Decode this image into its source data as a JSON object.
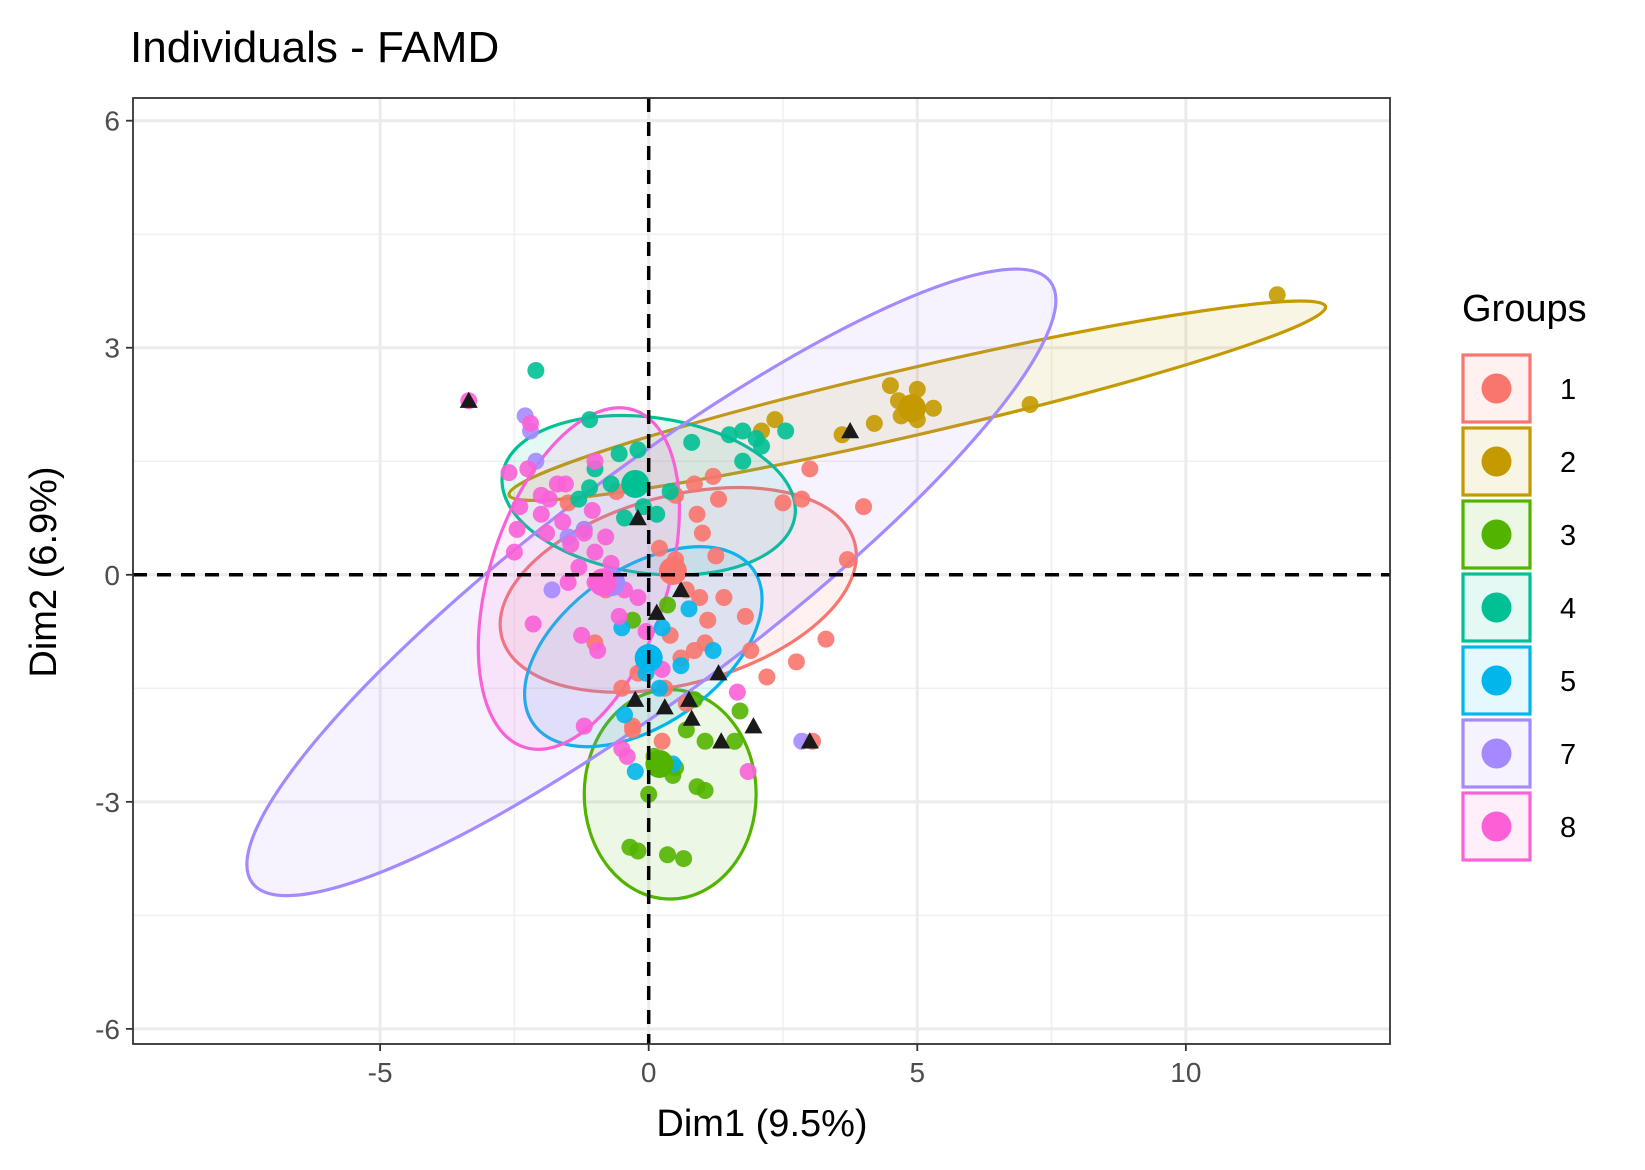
{
  "chart_data": {
    "type": "scatter",
    "title": "Individuals - FAMD",
    "xlabel": "Dim1 (9.5%)",
    "ylabel": "Dim2 (6.9%)",
    "xlim": [
      -9.6,
      13.8
    ],
    "ylim": [
      -6.2,
      6.3
    ],
    "xticks": [
      -5,
      0,
      5,
      10
    ],
    "yticks": [
      -6,
      -3,
      0,
      3,
      6
    ],
    "xtick_labels": [
      "-5",
      "0",
      "5",
      "10"
    ],
    "ytick_labels": [
      "-6",
      "-3",
      "0",
      "3",
      "6"
    ],
    "grid": true,
    "legend_position": "right",
    "legend_title": "Groups",
    "reference_lines": {
      "x": 0,
      "y": 0,
      "style": "dashed"
    },
    "series": [
      {
        "name": "1",
        "color": "#F8766D",
        "centroid": [
          0.45,
          0.05
        ],
        "ellipse": {
          "cx": 0.55,
          "cy": -0.2,
          "rx": 3.4,
          "ry": 1.75,
          "angle": 15
        },
        "points": [
          [
            3.0,
            1.4
          ],
          [
            4.0,
            0.9
          ],
          [
            2.5,
            0.95
          ],
          [
            2.85,
            1.0
          ],
          [
            3.7,
            0.2
          ],
          [
            3.3,
            -0.85
          ],
          [
            2.75,
            -1.15
          ],
          [
            2.2,
            -1.35
          ],
          [
            1.9,
            -1.0
          ],
          [
            3.05,
            -2.2
          ],
          [
            1.2,
            1.3
          ],
          [
            1.3,
            1.0
          ],
          [
            0.9,
            0.8
          ],
          [
            1.0,
            0.55
          ],
          [
            1.25,
            0.25
          ],
          [
            0.5,
            0.2
          ],
          [
            0.2,
            0.35
          ],
          [
            0.7,
            -0.2
          ],
          [
            1.1,
            -0.6
          ],
          [
            1.05,
            -0.9
          ],
          [
            0.85,
            -1.0
          ],
          [
            0.4,
            -0.8
          ],
          [
            0.6,
            -1.1
          ],
          [
            0.3,
            -1.5
          ],
          [
            -0.2,
            -1.3
          ],
          [
            -0.5,
            -1.5
          ],
          [
            -0.3,
            -2.0
          ],
          [
            -0.3,
            -2.05
          ],
          [
            0.25,
            -2.2
          ],
          [
            0.7,
            -1.7
          ],
          [
            1.4,
            -0.3
          ],
          [
            0.95,
            -0.3
          ],
          [
            1.8,
            -0.55
          ],
          [
            -0.8,
            -0.2
          ],
          [
            -1.2,
            0.6
          ],
          [
            -1.5,
            0.95
          ],
          [
            -0.6,
            1.1
          ],
          [
            -0.2,
            1.2
          ],
          [
            0.5,
            1.05
          ],
          [
            0.85,
            1.2
          ],
          [
            -1.0,
            -0.9
          ]
        ]
      },
      {
        "name": "2",
        "color": "#C49A00",
        "centroid": [
          4.9,
          2.2
        ],
        "ellipse": {
          "cx": 5.0,
          "cy": 2.3,
          "rx": 7.8,
          "ry": 0.62,
          "angle": 13
        },
        "points": [
          [
            11.7,
            3.7
          ],
          [
            7.1,
            2.25
          ],
          [
            5.3,
            2.2
          ],
          [
            5.0,
            2.05
          ],
          [
            4.7,
            2.1
          ],
          [
            4.5,
            2.5
          ],
          [
            5.0,
            2.45
          ],
          [
            4.95,
            2.2
          ],
          [
            4.2,
            2.0
          ],
          [
            3.6,
            1.85
          ],
          [
            2.35,
            2.05
          ],
          [
            2.1,
            1.9
          ],
          [
            4.65,
            2.3
          ]
        ]
      },
      {
        "name": "3",
        "color": "#53B400",
        "centroid": [
          0.2,
          -2.5
        ],
        "ellipse": {
          "cx": 0.4,
          "cy": -2.9,
          "rx": 1.6,
          "ry": 1.95,
          "angle": 0
        },
        "points": [
          [
            -0.35,
            -3.6
          ],
          [
            -0.2,
            -3.65
          ],
          [
            0.35,
            -3.7
          ],
          [
            0.65,
            -3.75
          ],
          [
            1.05,
            -2.85
          ],
          [
            0.9,
            -2.8
          ],
          [
            0.45,
            -2.65
          ],
          [
            0.0,
            -2.9
          ],
          [
            1.05,
            -2.2
          ],
          [
            0.7,
            -2.05
          ],
          [
            1.7,
            -1.8
          ],
          [
            0.85,
            -1.65
          ],
          [
            -0.3,
            -0.6
          ],
          [
            0.35,
            -0.4
          ],
          [
            0.1,
            -2.4
          ],
          [
            0.5,
            -2.55
          ],
          [
            1.6,
            -2.2
          ]
        ]
      },
      {
        "name": "4",
        "color": "#00C094",
        "centroid": [
          -0.25,
          1.2
        ],
        "ellipse": {
          "cx": 0.0,
          "cy": 1.05,
          "rx": 2.75,
          "ry": 1.45,
          "angle": -8
        },
        "points": [
          [
            -2.1,
            2.7
          ],
          [
            -1.1,
            2.05
          ],
          [
            -0.2,
            1.65
          ],
          [
            0.8,
            1.75
          ],
          [
            1.5,
            1.85
          ],
          [
            1.75,
            1.9
          ],
          [
            2.0,
            1.8
          ],
          [
            2.55,
            1.9
          ],
          [
            2.1,
            1.7
          ],
          [
            1.75,
            1.5
          ],
          [
            -0.55,
            1.6
          ],
          [
            -1.0,
            1.4
          ],
          [
            -1.1,
            1.15
          ],
          [
            -0.7,
            1.2
          ],
          [
            0.4,
            1.1
          ],
          [
            -0.1,
            0.9
          ],
          [
            -1.3,
            1.0
          ],
          [
            -0.45,
            0.75
          ],
          [
            0.15,
            0.8
          ]
        ]
      },
      {
        "name": "5",
        "color": "#00B6EB",
        "centroid": [
          0.0,
          -1.1
        ],
        "ellipse": {
          "cx": -0.1,
          "cy": -0.95,
          "rx": 2.5,
          "ry": 1.45,
          "angle": 35
        },
        "points": [
          [
            0.75,
            -0.45
          ],
          [
            0.25,
            -0.7
          ],
          [
            -0.05,
            -1.3
          ],
          [
            0.2,
            -1.5
          ],
          [
            0.6,
            -1.2
          ],
          [
            -0.45,
            -1.85
          ],
          [
            -0.25,
            -2.6
          ],
          [
            0.45,
            -2.5
          ],
          [
            1.2,
            -1.0
          ],
          [
            -0.5,
            -0.7
          ]
        ]
      },
      {
        "name": "7",
        "color": "#A58AFF",
        "centroid": [
          -0.7,
          -0.1
        ],
        "ellipse": {
          "cx": 0.05,
          "cy": -0.1,
          "rx": 9.3,
          "ry": 2.05,
          "angle": 37
        },
        "points": [
          [
            2.85,
            -2.2
          ],
          [
            -2.3,
            2.1
          ],
          [
            -2.2,
            1.9
          ],
          [
            -2.1,
            1.5
          ],
          [
            -1.8,
            -0.2
          ],
          [
            -1.5,
            0.5
          ],
          [
            -1.2,
            0.6
          ]
        ]
      },
      {
        "name": "8",
        "color": "#FB61D7",
        "centroid": [
          -0.85,
          -0.1
        ],
        "ellipse": {
          "cx": -1.3,
          "cy": -0.05,
          "rx": 3.3,
          "ry": 1.65,
          "angle": 72
        },
        "points": [
          [
            -3.35,
            2.3
          ],
          [
            -2.2,
            2.0
          ],
          [
            -1.0,
            1.5
          ],
          [
            -1.55,
            1.2
          ],
          [
            -1.85,
            1.0
          ],
          [
            -2.6,
            1.35
          ],
          [
            -2.25,
            1.4
          ],
          [
            -2.4,
            0.9
          ],
          [
            -2.0,
            0.8
          ],
          [
            -1.6,
            0.7
          ],
          [
            -1.2,
            0.55
          ],
          [
            -2.45,
            0.6
          ],
          [
            -1.9,
            0.55
          ],
          [
            -1.45,
            0.4
          ],
          [
            -1.0,
            0.3
          ],
          [
            -0.7,
            0.15
          ],
          [
            -1.3,
            0.1
          ],
          [
            -1.5,
            -0.1
          ],
          [
            -1.0,
            -0.1
          ],
          [
            -0.45,
            -0.2
          ],
          [
            -0.2,
            -0.3
          ],
          [
            -2.15,
            -0.65
          ],
          [
            -1.25,
            -0.8
          ],
          [
            -0.95,
            -1.0
          ],
          [
            -1.2,
            -2.0
          ],
          [
            -0.5,
            -2.3
          ],
          [
            -0.4,
            -2.4
          ],
          [
            1.85,
            -2.6
          ],
          [
            1.65,
            -1.55
          ],
          [
            0.25,
            -1.25
          ],
          [
            -0.05,
            -0.75
          ],
          [
            -1.7,
            1.2
          ],
          [
            -2.0,
            1.05
          ],
          [
            -1.05,
            0.85
          ],
          [
            -0.8,
            0.5
          ],
          [
            -2.5,
            0.3
          ],
          [
            -0.55,
            -0.55
          ]
        ]
      }
    ],
    "supplementary_points": {
      "marker": "triangle",
      "color": "#1a1a1a",
      "points": [
        [
          -3.35,
          2.3
        ],
        [
          3.75,
          1.9
        ],
        [
          -0.2,
          0.75
        ],
        [
          0.6,
          -0.2
        ],
        [
          1.3,
          -1.3
        ],
        [
          1.35,
          -2.2
        ],
        [
          0.75,
          -1.65
        ],
        [
          0.3,
          -1.75
        ],
        [
          -0.25,
          -1.65
        ],
        [
          0.8,
          -1.9
        ],
        [
          1.95,
          -2.0
        ],
        [
          3.0,
          -2.2
        ],
        [
          0.15,
          -0.5
        ]
      ]
    }
  }
}
